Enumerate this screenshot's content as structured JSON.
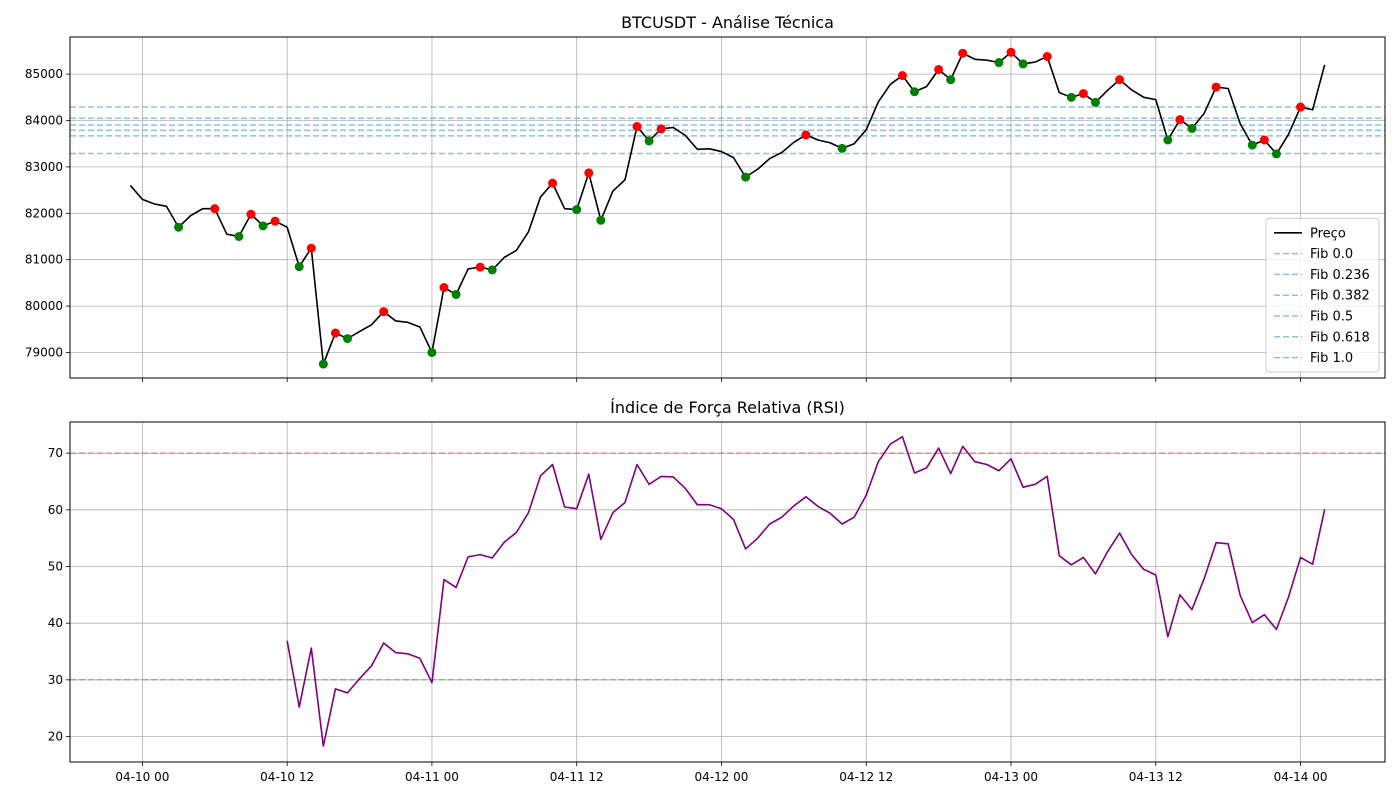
{
  "chart_data": [
    {
      "type": "line",
      "title": "BTCUSDT - Análise Técnica",
      "xlabel": "",
      "ylabel": "",
      "x_tick_labels": [
        "04-10 00",
        "04-10 12",
        "04-11 00",
        "04-11 12",
        "04-12 00",
        "04-12 12",
        "04-13 00",
        "04-13 12",
        "04-14 00"
      ],
      "x_tick_hours": [
        0,
        12,
        24,
        36,
        48,
        60,
        72,
        84,
        96
      ],
      "xlim_hours": [
        -6,
        103
      ],
      "ylim": [
        78450,
        85800
      ],
      "y_ticks": [
        79000,
        80000,
        81000,
        82000,
        83000,
        84000,
        85000
      ],
      "grid": true,
      "legend_position": "bottom-right",
      "colors": {
        "price": "#000000",
        "fib": "#6baed6",
        "peak": "#ff0000",
        "trough": "#008000"
      },
      "series": [
        {
          "name": "Preço",
          "x_hours_start": -1,
          "x_hours_step": 1,
          "values": [
            82600,
            82300,
            82200,
            82150,
            81700,
            81950,
            82100,
            82100,
            81550,
            81500,
            81980,
            81730,
            81830,
            81700,
            80850,
            81250,
            78750,
            79420,
            79300,
            79450,
            79600,
            79880,
            79680,
            79650,
            79550,
            79000,
            80400,
            80250,
            80800,
            80840,
            80780,
            81050,
            81200,
            81600,
            82350,
            82650,
            82100,
            82080,
            82870,
            81850,
            82480,
            82720,
            83870,
            83560,
            83820,
            83850,
            83680,
            83380,
            83390,
            83330,
            83200,
            82780,
            82950,
            83180,
            83310,
            83530,
            83690,
            83580,
            83520,
            83400,
            83500,
            83800,
            84400,
            84780,
            84970,
            84620,
            84730,
            85100,
            84880,
            85450,
            85320,
            85300,
            85250,
            85470,
            85220,
            85260,
            85380,
            84600,
            84500,
            84580,
            84390,
            84650,
            84880,
            84660,
            84500,
            84450,
            83580,
            84020,
            83830,
            84150,
            84720,
            84690,
            83930,
            83470,
            83580,
            83280,
            83700,
            84290,
            84230,
            85200
          ]
        }
      ],
      "peaks": [
        {
          "x_hour": 6,
          "value": 82100
        },
        {
          "x_hour": 9,
          "value": 81980
        },
        {
          "x_hour": 11,
          "value": 81830
        },
        {
          "x_hour": 14,
          "value": 81250
        },
        {
          "x_hour": 16,
          "value": 79420
        },
        {
          "x_hour": 20,
          "value": 79880
        },
        {
          "x_hour": 25,
          "value": 80400
        },
        {
          "x_hour": 28,
          "value": 80840
        },
        {
          "x_hour": 34,
          "value": 82650
        },
        {
          "x_hour": 37,
          "value": 82870
        },
        {
          "x_hour": 41,
          "value": 83870
        },
        {
          "x_hour": 43,
          "value": 83820
        },
        {
          "x_hour": 55,
          "value": 83690
        },
        {
          "x_hour": 63,
          "value": 84970
        },
        {
          "x_hour": 66,
          "value": 85100
        },
        {
          "x_hour": 68,
          "value": 85450
        },
        {
          "x_hour": 72,
          "value": 85470
        },
        {
          "x_hour": 75,
          "value": 85380
        },
        {
          "x_hour": 78,
          "value": 84580
        },
        {
          "x_hour": 81,
          "value": 84880
        },
        {
          "x_hour": 86,
          "value": 84020
        },
        {
          "x_hour": 89,
          "value": 84720
        },
        {
          "x_hour": 93,
          "value": 83580
        },
        {
          "x_hour": 96,
          "value": 84290
        }
      ],
      "troughs": [
        {
          "x_hour": 3,
          "value": 81700
        },
        {
          "x_hour": 8,
          "value": 81500
        },
        {
          "x_hour": 10,
          "value": 81730
        },
        {
          "x_hour": 13,
          "value": 80850
        },
        {
          "x_hour": 15,
          "value": 78750
        },
        {
          "x_hour": 17,
          "value": 79300
        },
        {
          "x_hour": 24,
          "value": 79000
        },
        {
          "x_hour": 26,
          "value": 80250
        },
        {
          "x_hour": 29,
          "value": 80780
        },
        {
          "x_hour": 36,
          "value": 82080
        },
        {
          "x_hour": 38,
          "value": 81850
        },
        {
          "x_hour": 42,
          "value": 83560
        },
        {
          "x_hour": 50,
          "value": 82780
        },
        {
          "x_hour": 58,
          "value": 83400
        },
        {
          "x_hour": 64,
          "value": 84620
        },
        {
          "x_hour": 67,
          "value": 84880
        },
        {
          "x_hour": 71,
          "value": 85250
        },
        {
          "x_hour": 73,
          "value": 85220
        },
        {
          "x_hour": 77,
          "value": 84500
        },
        {
          "x_hour": 79,
          "value": 84390
        },
        {
          "x_hour": 85,
          "value": 83580
        },
        {
          "x_hour": 87,
          "value": 83830
        },
        {
          "x_hour": 92,
          "value": 83470
        },
        {
          "x_hour": 94,
          "value": 83280
        }
      ],
      "fibonacci_levels": [
        {
          "name": "Fib 0.0",
          "value": 84290
        },
        {
          "name": "Fib 0.236",
          "value": 84050
        },
        {
          "name": "Fib 0.382",
          "value": 83900
        },
        {
          "name": "Fib 0.5",
          "value": 83790
        },
        {
          "name": "Fib 0.618",
          "value": 83670
        },
        {
          "name": "Fib 1.0",
          "value": 83290
        }
      ]
    },
    {
      "type": "line",
      "title": "Índice de Força Relativa (RSI)",
      "xlabel": "",
      "ylabel": "",
      "x_tick_labels": [
        "04-10 00",
        "04-10 12",
        "04-11 00",
        "04-11 12",
        "04-12 00",
        "04-12 12",
        "04-13 00",
        "04-13 12",
        "04-14 00"
      ],
      "x_tick_hours": [
        0,
        12,
        24,
        36,
        48,
        60,
        72,
        84,
        96
      ],
      "xlim_hours": [
        -6,
        103
      ],
      "ylim": [
        15.5,
        75.5
      ],
      "y_ticks": [
        20,
        30,
        40,
        50,
        60,
        70
      ],
      "grid": true,
      "colors": {
        "rsi": "#800080",
        "overbought": "#ff0000",
        "oversold": "#008000"
      },
      "reference_lines": [
        {
          "value": 70,
          "color": "#ff0000"
        },
        {
          "value": 30,
          "color": "#008000"
        }
      ],
      "series": [
        {
          "x_hours_start": 12,
          "x_hours_step": 1,
          "values": [
            36.9,
            25.2,
            35.6,
            18.3,
            28.4,
            27.7,
            30.2,
            32.5,
            36.5,
            34.8,
            34.6,
            33.8,
            29.5,
            47.7,
            46.3,
            51.7,
            52.1,
            51.5,
            54.3,
            56.0,
            59.5,
            66.0,
            68.0,
            60.5,
            60.2,
            66.3,
            54.8,
            59.5,
            61.3,
            68.0,
            64.5,
            65.9,
            65.8,
            63.8,
            60.9,
            60.9,
            60.2,
            58.3,
            53.1,
            55.0,
            57.5,
            58.7,
            60.7,
            62.3,
            60.6,
            59.4,
            57.5,
            58.7,
            62.6,
            68.5,
            71.6,
            72.9,
            66.5,
            67.4,
            70.9,
            66.4,
            71.2,
            68.5,
            68.0,
            66.9,
            69.0,
            64.0,
            64.5,
            65.9,
            51.9,
            50.3,
            51.6,
            48.7,
            52.6,
            55.9,
            52.1,
            49.5,
            48.5,
            37.6,
            45.0,
            42.4,
            47.8,
            54.2,
            54.0,
            44.9,
            40.1,
            41.5,
            38.9,
            44.6,
            51.6,
            50.4,
            60.1
          ]
        }
      ]
    }
  ]
}
